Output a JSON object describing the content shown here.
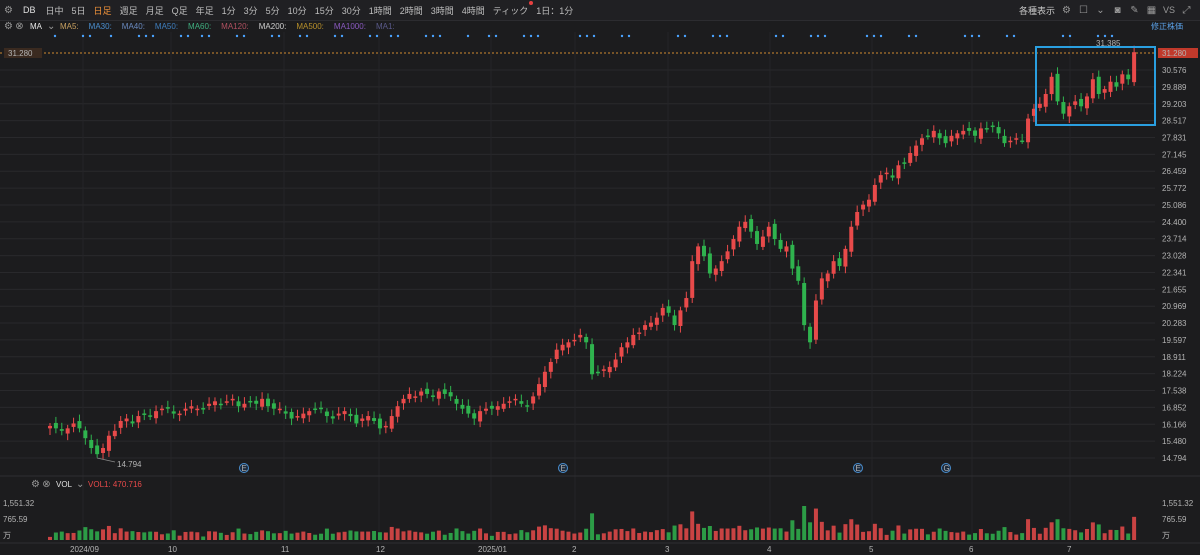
{
  "toolbar": {
    "symbol": "DB",
    "timeframes": [
      {
        "label": "日中",
        "active": false
      },
      {
        "label": "5日",
        "active": false
      },
      {
        "label": "日足",
        "active": true
      },
      {
        "label": "週足",
        "active": false
      },
      {
        "label": "月足",
        "active": false
      },
      {
        "label": "Q足",
        "active": false
      },
      {
        "label": "年足",
        "active": false
      },
      {
        "label": "1分",
        "active": false
      },
      {
        "label": "3分",
        "active": false
      },
      {
        "label": "5分",
        "active": false
      },
      {
        "label": "10分",
        "active": false
      },
      {
        "label": "15分",
        "active": false
      },
      {
        "label": "30分",
        "active": false
      },
      {
        "label": "1時間",
        "active": false
      },
      {
        "label": "2時間",
        "active": false
      },
      {
        "label": "3時間",
        "active": false
      },
      {
        "label": "4時間",
        "active": false
      },
      {
        "label": "ティック",
        "active": false
      },
      {
        "label": "1日：1分",
        "active": false
      }
    ],
    "display_label": "各種表示",
    "vs_label": "VS",
    "icons": [
      "settings-icon",
      "square-icon",
      "camera-icon",
      "pencil-icon",
      "layout-icon",
      "fullscreen-icon"
    ]
  },
  "indicators": {
    "ma_label": "MA",
    "items": [
      {
        "label": "MA5:",
        "color": "#c8a060"
      },
      {
        "label": "MA30:",
        "color": "#4a8fd0"
      },
      {
        "label": "MA40:",
        "color": "#6a8ac0"
      },
      {
        "label": "MA50:",
        "color": "#3f7fbf"
      },
      {
        "label": "MA60:",
        "color": "#3fae7f"
      },
      {
        "label": "MA120:",
        "color": "#b05060"
      },
      {
        "label": "MA200:",
        "color": "#cfcfcf"
      },
      {
        "label": "MA500:",
        "color": "#b8902a"
      },
      {
        "label": "MA1000:",
        "color": "#8a5ac0"
      },
      {
        "label": "MA1:",
        "color": "#5a5a8a"
      }
    ],
    "revise_label": "修正株価"
  },
  "price_axis": {
    "ticks": [
      "30.576",
      "29.889",
      "29.203",
      "28.517",
      "27.831",
      "27.145",
      "26.459",
      "25.772",
      "25.086",
      "24.400",
      "23.714",
      "23.028",
      "22.341",
      "21.655",
      "20.969",
      "20.283",
      "19.597",
      "18.911",
      "18.224",
      "17.538",
      "16.852",
      "16.166",
      "15.480",
      "14.794"
    ],
    "current_price": "31.280",
    "high_label": "31.385",
    "low_label": "14.794"
  },
  "volume": {
    "label": "VOL",
    "value_label": "VOL1: 470.716",
    "axis_ticks": [
      "1,551.32",
      "765.59",
      "万"
    ]
  },
  "time_axis": {
    "labels": [
      "2024/09",
      "10",
      "11",
      "12",
      "2025/01",
      "2",
      "3",
      "4",
      "5",
      "6",
      "7"
    ]
  },
  "event_markers": [
    "E",
    "E",
    "E",
    "G"
  ],
  "colors": {
    "up": "#e84a4a",
    "down": "#2fb34e",
    "highlight_box": "#2a9fe0",
    "dot": "#4aa3ff",
    "current_line": "#d08a30"
  },
  "chart_data": {
    "type": "candlestick",
    "series": [
      {
        "name": "VOL1",
        "values": []
      }
    ],
    "ohlc_close_approx": [
      16.1,
      16.0,
      15.9,
      16.0,
      16.2,
      16.0,
      15.6,
      15.2,
      14.95,
      15.2,
      15.7,
      15.9,
      16.3,
      16.4,
      16.2,
      16.5,
      16.6,
      16.5,
      16.7,
      16.8,
      16.8,
      16.6,
      16.6,
      16.8,
      16.9,
      16.8,
      16.8,
      17.0,
      17.1,
      17.0,
      17.1,
      17.2,
      16.9,
      17.0,
      17.1,
      17.0,
      17.2,
      16.9,
      16.8,
      16.8,
      16.6,
      16.4,
      16.5,
      16.6,
      16.7,
      16.8,
      16.8,
      16.5,
      16.4,
      16.6,
      16.7,
      16.5,
      16.2,
      16.4,
      16.5,
      16.3,
      16.0,
      16.1,
      16.5,
      16.9,
      17.2,
      17.4,
      17.3,
      17.5,
      17.4,
      17.3,
      17.5,
      17.4,
      17.3,
      17.0,
      16.8,
      16.6,
      16.4,
      16.7,
      16.8,
      16.8,
      16.9,
      17.0,
      17.1,
      17.2,
      17.0,
      16.9,
      17.3,
      17.8,
      18.3,
      18.7,
      19.2,
      19.4,
      19.5,
      19.6,
      19.8,
      19.5,
      18.2,
      18.3,
      18.4,
      18.5,
      18.8,
      19.3,
      19.5,
      19.8,
      19.9,
      20.2,
      20.3,
      20.5,
      20.9,
      20.7,
      20.2,
      20.8,
      21.3,
      22.8,
      23.4,
      23.0,
      22.3,
      22.5,
      22.8,
      23.2,
      23.7,
      24.2,
      24.4,
      24.0,
      23.5,
      23.8,
      24.2,
      23.7,
      23.3,
      23.4,
      22.5,
      22.0,
      20.2,
      19.5,
      21.2,
      22.1,
      22.3,
      22.8,
      22.6,
      23.3,
      24.2,
      24.8,
      25.1,
      25.3,
      25.9,
      26.3,
      26.4,
      26.2,
      26.7,
      26.8,
      27.2,
      27.5,
      27.8,
      27.9,
      28.1,
      27.8,
      27.6,
      27.9,
      28.0,
      28.1,
      28.1,
      27.9,
      28.2,
      28.2,
      28.3,
      28.0,
      27.6,
      27.7,
      27.8,
      27.7,
      28.6,
      29.0,
      29.2,
      29.6,
      30.3,
      29.3,
      28.8,
      29.1,
      29.3,
      29.1,
      29.5,
      30.2,
      29.6,
      29.8,
      30.1,
      29.9,
      30.4,
      30.2,
      31.3
    ],
    "ylim": [
      14.794,
      31.28
    ],
    "x_labels": [
      "2024/09",
      "10",
      "11",
      "12",
      "2025/01",
      "2",
      "3",
      "4",
      "5",
      "6",
      "7"
    ],
    "current": 31.28,
    "high": 31.385,
    "low": 14.794
  }
}
